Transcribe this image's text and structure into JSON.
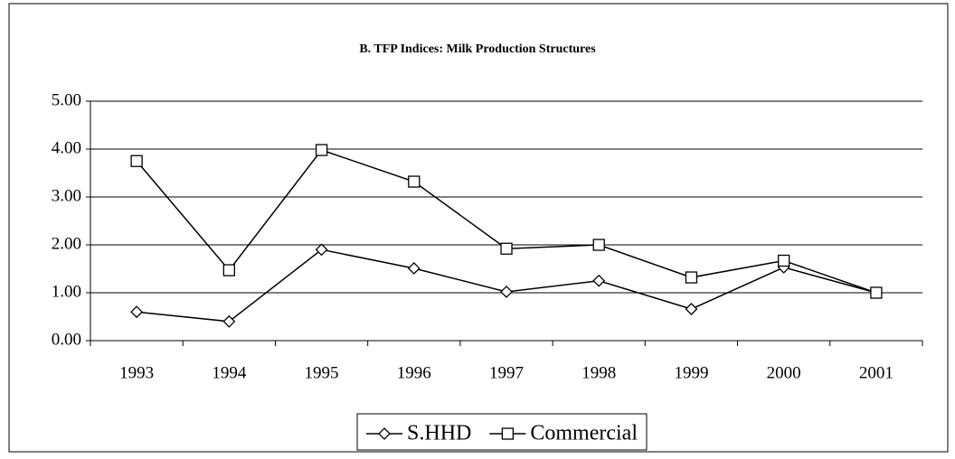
{
  "chart_data": {
    "type": "line",
    "title": "B. TFP  Indices: Milk Production Structures",
    "categories": [
      "1993",
      "1994",
      "1995",
      "1996",
      "1997",
      "1998",
      "1999",
      "2000",
      "2001"
    ],
    "series": [
      {
        "name": "S.HHD",
        "color": "#000000",
        "marker": "diamond",
        "values": [
          0.6,
          0.4,
          1.9,
          1.51,
          1.02,
          1.25,
          0.66,
          1.53,
          1.0
        ]
      },
      {
        "name": "Commercial",
        "color": "#000000",
        "marker": "square",
        "values": [
          3.75,
          1.47,
          3.98,
          3.32,
          1.92,
          2.0,
          1.32,
          1.67,
          1.0
        ]
      }
    ],
    "ylim": [
      0,
      5
    ],
    "yticks": [
      {
        "value": 0,
        "label": "0.00"
      },
      {
        "value": 1,
        "label": "1.00"
      },
      {
        "value": 2,
        "label": "2.00"
      },
      {
        "value": 3,
        "label": "3.00"
      },
      {
        "value": 4,
        "label": "4.00"
      },
      {
        "value": 5,
        "label": "5.00"
      }
    ],
    "grid": true,
    "legend": "bottom"
  }
}
